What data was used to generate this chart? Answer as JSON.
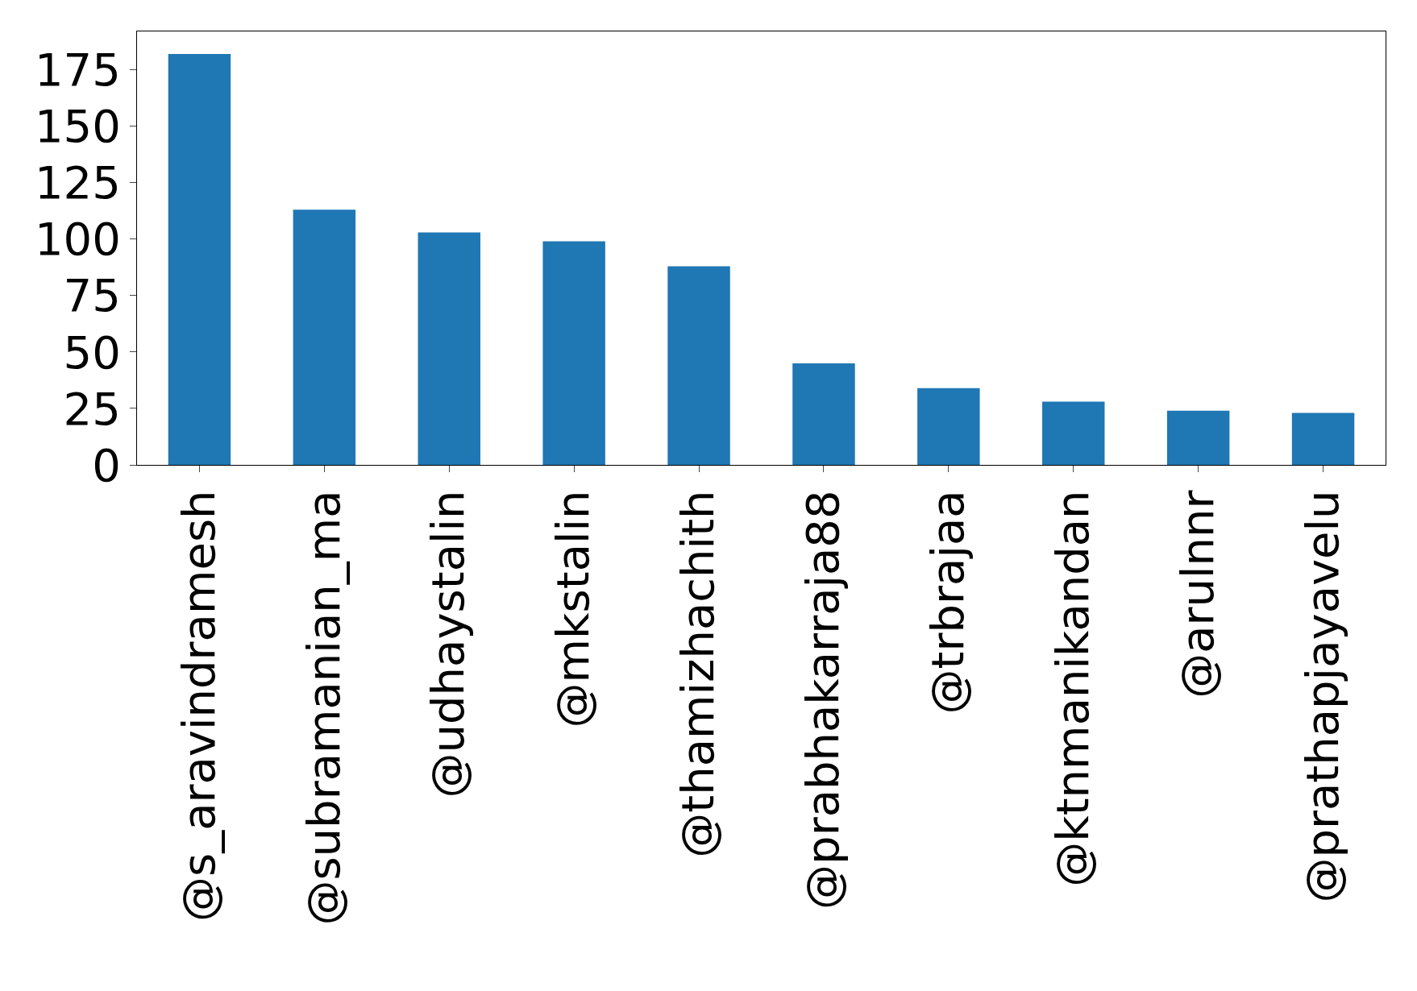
{
  "chart_data": {
    "type": "bar",
    "categories": [
      "@s_aravindramesh",
      "@subramanian_ma",
      "@udhaystalin",
      "@mkstalin",
      "@thamizhachith",
      "@prabhakarraja88",
      "@trbrajaa",
      "@ktnmanikandan",
      "@arulnnr",
      "@prathapjayavelu"
    ],
    "values": [
      182,
      113,
      103,
      99,
      88,
      45,
      34,
      28,
      24,
      23
    ],
    "color": "#1f77b4",
    "ylim": [
      0,
      192
    ],
    "yticks": [
      0,
      25,
      50,
      75,
      100,
      125,
      150,
      175
    ],
    "grid": false
  }
}
